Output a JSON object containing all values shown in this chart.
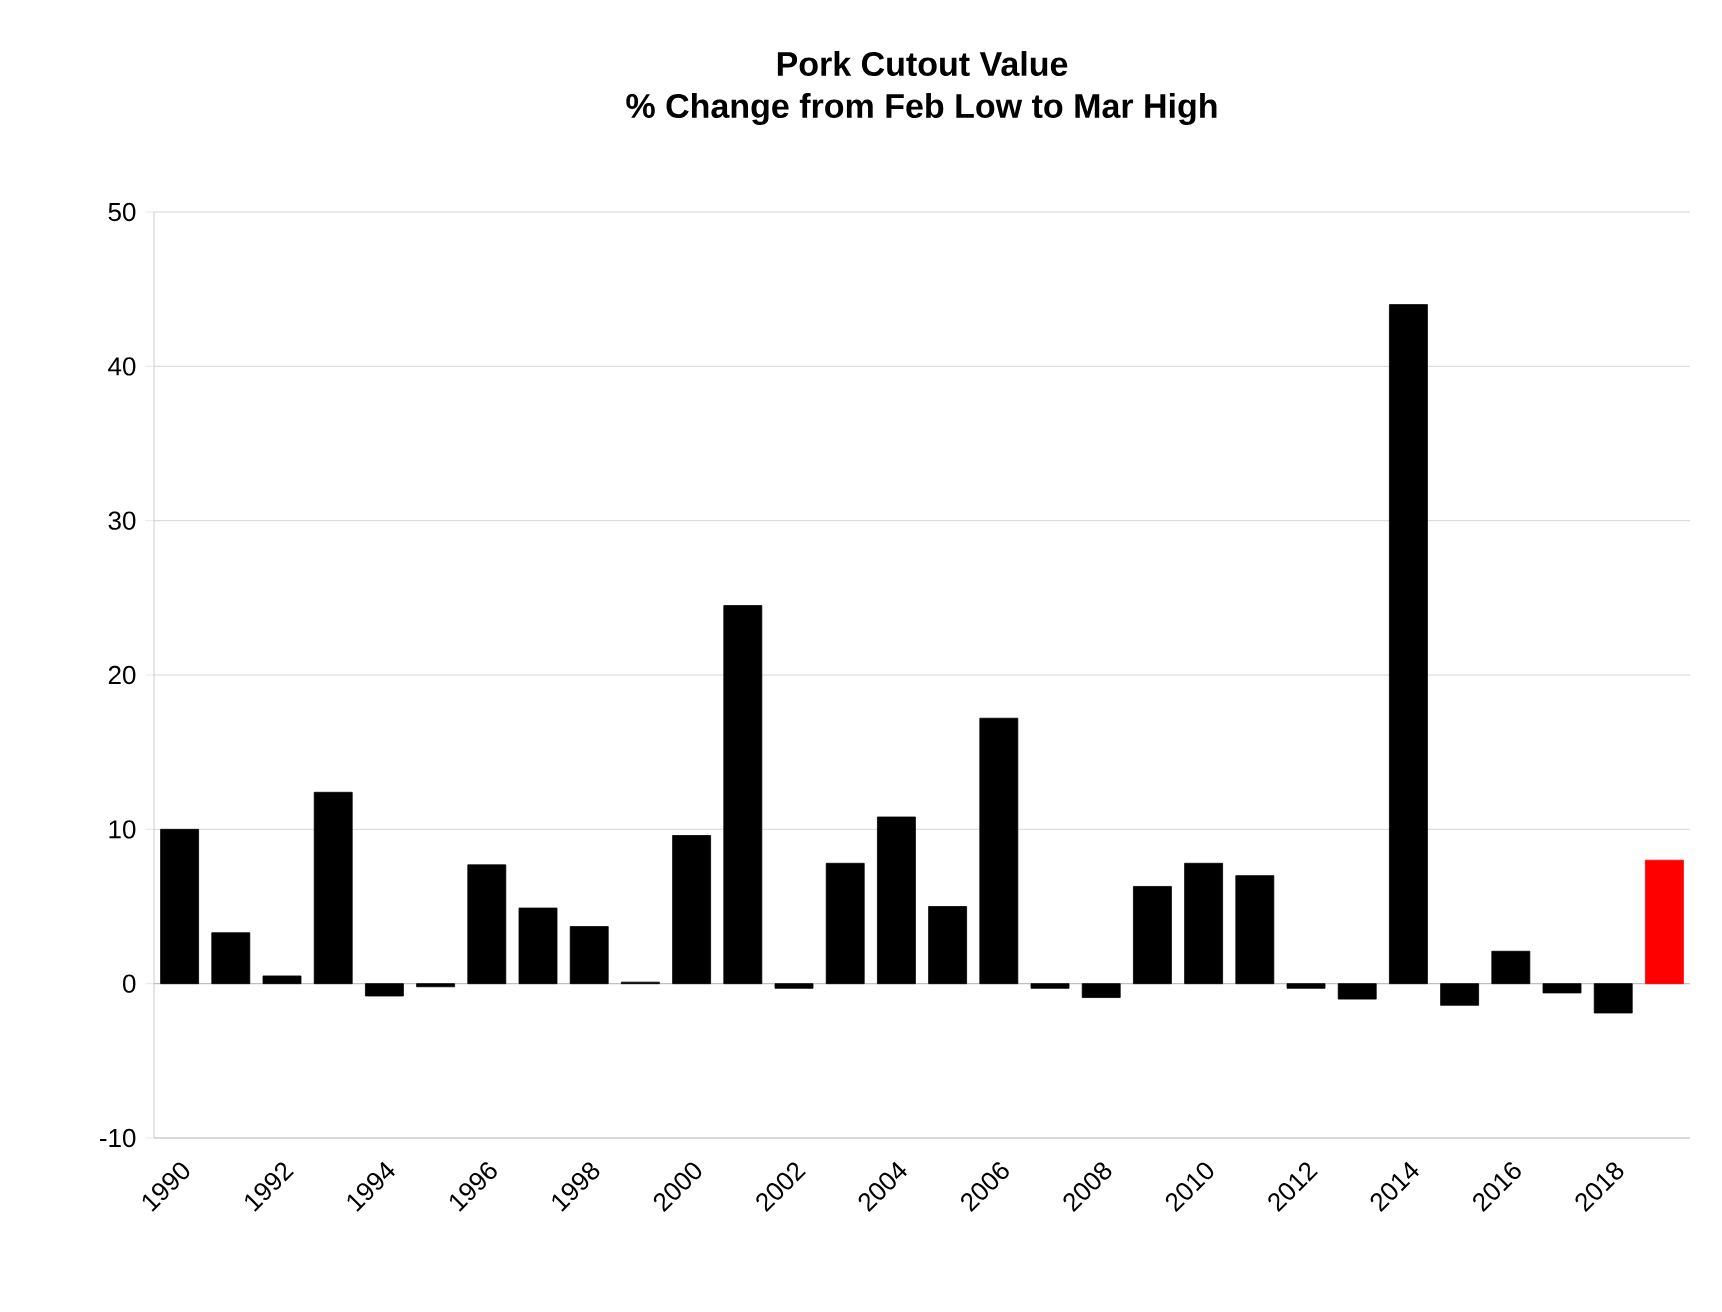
{
  "chart_data": {
    "type": "bar",
    "title": "Pork Cutout Value",
    "subtitle": "% Change from Feb Low to Mar High",
    "categories": [
      "1990",
      null,
      "1992",
      null,
      "1994",
      null,
      "1996",
      null,
      "1998",
      null,
      "2000",
      null,
      "2002",
      null,
      "2004",
      null,
      "2006",
      null,
      "2008",
      null,
      "2010",
      null,
      "2012",
      null,
      "2014",
      null,
      "2016",
      null,
      "2018",
      null
    ],
    "values": [
      10.0,
      3.3,
      0.5,
      12.4,
      -0.8,
      -0.2,
      7.7,
      4.9,
      3.7,
      0.1,
      9.6,
      24.5,
      -0.3,
      7.8,
      10.8,
      5.0,
      17.2,
      -0.3,
      -0.9,
      6.3,
      7.8,
      7.0,
      -0.3,
      -1.0,
      44.0,
      -1.4,
      2.1,
      -0.6,
      -1.9,
      8.0
    ],
    "colors": [
      "#000000",
      "#000000",
      "#000000",
      "#000000",
      "#000000",
      "#000000",
      "#000000",
      "#000000",
      "#000000",
      "#000000",
      "#000000",
      "#000000",
      "#000000",
      "#000000",
      "#000000",
      "#000000",
      "#000000",
      "#000000",
      "#000000",
      "#000000",
      "#000000",
      "#000000",
      "#000000",
      "#000000",
      "#000000",
      "#000000",
      "#000000",
      "#000000",
      "#000000",
      "#ff0000"
    ],
    "ylim": [
      -10,
      50
    ],
    "yticks": [
      -10,
      0,
      10,
      20,
      30,
      40,
      50
    ],
    "grid": "y"
  }
}
